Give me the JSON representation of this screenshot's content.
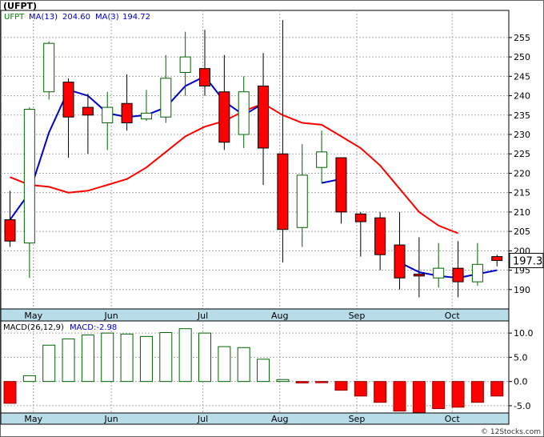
{
  "header": {
    "title": "(UFPT)"
  },
  "price_panel": {
    "legend": [
      {
        "label": "UFPT",
        "color": "#008000"
      },
      {
        "label": "MA(13)",
        "value": "204.60",
        "color": "#0000cc"
      },
      {
        "label": "MA(3)",
        "value": "194.72",
        "color": "#0000cc"
      }
    ],
    "last_price_label": "197.3"
  },
  "macd_panel": {
    "legend": [
      {
        "label": "MACD(26,12,9)",
        "color": "#000000"
      },
      {
        "label": "MACD:-2.98",
        "color": "#0000cc"
      }
    ]
  },
  "watermark": "© 12Stocks.com",
  "colors": {
    "up_candle_fill": "#ffffff",
    "up_candle_stroke": "#006400",
    "down_candle_fill": "#ff0000",
    "down_candle_stroke": "#000000",
    "ma_long": "#ff0000",
    "ma_short": "#0000cc",
    "axis_band": "#b8dce8",
    "grid": "#aaaaaa"
  },
  "chart_data": [
    {
      "type": "candlestick",
      "title": "(UFPT)",
      "ylim": [
        185,
        262
      ],
      "yticks": [
        190,
        195,
        200,
        205,
        210,
        215,
        220,
        225,
        230,
        235,
        240,
        245,
        250,
        255
      ],
      "x_tick_labels": [
        "May",
        "Jun",
        "Jul",
        "Aug",
        "Sep",
        "Oct"
      ],
      "x_tick_index": [
        1.2,
        5.2,
        9.9,
        13.85,
        17.8,
        22.7
      ],
      "candles": [
        {
          "open": 208,
          "high": 215.5,
          "low": 201,
          "close": 202.5
        },
        {
          "open": 202,
          "high": 237,
          "low": 193,
          "close": 236.5
        },
        {
          "open": 241,
          "high": 254,
          "low": 239,
          "close": 253.5
        },
        {
          "open": 243.5,
          "high": 244.5,
          "low": 224,
          "close": 234.5
        },
        {
          "open": 237,
          "high": 240.5,
          "low": 225,
          "close": 235
        },
        {
          "open": 233,
          "high": 241,
          "low": 226,
          "close": 237
        },
        {
          "open": 238,
          "high": 245.5,
          "low": 231,
          "close": 233
        },
        {
          "open": 234,
          "high": 241.5,
          "low": 233.5,
          "close": 235.5
        },
        {
          "open": 234.5,
          "high": 250.5,
          "low": 233,
          "close": 244.5
        },
        {
          "open": 246,
          "high": 256.5,
          "low": 240,
          "close": 250
        },
        {
          "open": 247,
          "high": 257,
          "low": 240,
          "close": 242.5
        },
        {
          "open": 241,
          "high": 250.5,
          "low": 226,
          "close": 228
        },
        {
          "open": 230,
          "high": 245,
          "low": 226.5,
          "close": 241
        },
        {
          "open": 242.5,
          "high": 251,
          "low": 217,
          "close": 226.5
        },
        {
          "open": 225,
          "high": 259.5,
          "low": 197,
          "close": 205.5
        },
        {
          "open": 206,
          "high": 227.5,
          "low": 201,
          "close": 219.5
        },
        {
          "open": 221.5,
          "high": 231,
          "low": 217.5,
          "close": 225.5
        },
        {
          "open": 224,
          "high": 224,
          "low": 207,
          "close": 210
        },
        {
          "open": 209.5,
          "high": 210,
          "low": 198.5,
          "close": 207.5
        },
        {
          "open": 208.5,
          "high": 210,
          "low": 195,
          "close": 199
        },
        {
          "open": 201.5,
          "high": 210,
          "low": 190,
          "close": 193
        },
        {
          "open": 194,
          "high": 203.5,
          "low": 188,
          "close": 193.5
        },
        {
          "open": 193,
          "high": 202,
          "low": 190.5,
          "close": 195.5
        },
        {
          "open": 195.5,
          "high": 202.5,
          "low": 188,
          "close": 192
        },
        {
          "open": 192,
          "high": 202,
          "low": 191,
          "close": 196.5
        },
        {
          "open": 198.5,
          "high": 199,
          "low": 196,
          "close": 197.5
        }
      ],
      "series": [
        {
          "name": "MA(13)",
          "color": "#ff0000",
          "values": [
            219,
            217,
            216.5,
            215,
            215.5,
            217,
            218.5,
            221.5,
            225.5,
            229.5,
            232,
            233.5,
            236,
            238,
            235,
            233,
            232.5,
            229.5,
            226.5,
            222,
            216,
            210,
            206.5,
            204.5
          ]
        },
        {
          "name": "MA(3)",
          "color": "#0000cc",
          "values": [
            208,
            215,
            230.5,
            241.5,
            240,
            235.5,
            234.5,
            235,
            237,
            242.5,
            245,
            238.5,
            235,
            238,
            null,
            null,
            217.5,
            218.5,
            null,
            null,
            197,
            194.5,
            193.5,
            193,
            194,
            195
          ]
        }
      ]
    },
    {
      "type": "bar",
      "title": "MACD(26,12,9)",
      "ylim": [
        -6.5,
        12.5
      ],
      "yticks": [
        -5.0,
        0.0,
        5.0,
        10.0
      ],
      "x_tick_labels": [
        "May",
        "Jun",
        "Jul",
        "Aug",
        "Sep",
        "Oct"
      ],
      "values": [
        -4.5,
        1.2,
        7.5,
        8.8,
        9.6,
        10.0,
        9.8,
        9.3,
        10.1,
        10.9,
        10.0,
        7.2,
        7.0,
        4.6,
        0.4,
        -0.3,
        -0.1,
        -1.8,
        -3.0,
        -4.3,
        -6.1,
        -6.4,
        -5.6,
        -5.3,
        -4.3,
        -3.0
      ],
      "annotation": "MACD:-2.98"
    }
  ]
}
